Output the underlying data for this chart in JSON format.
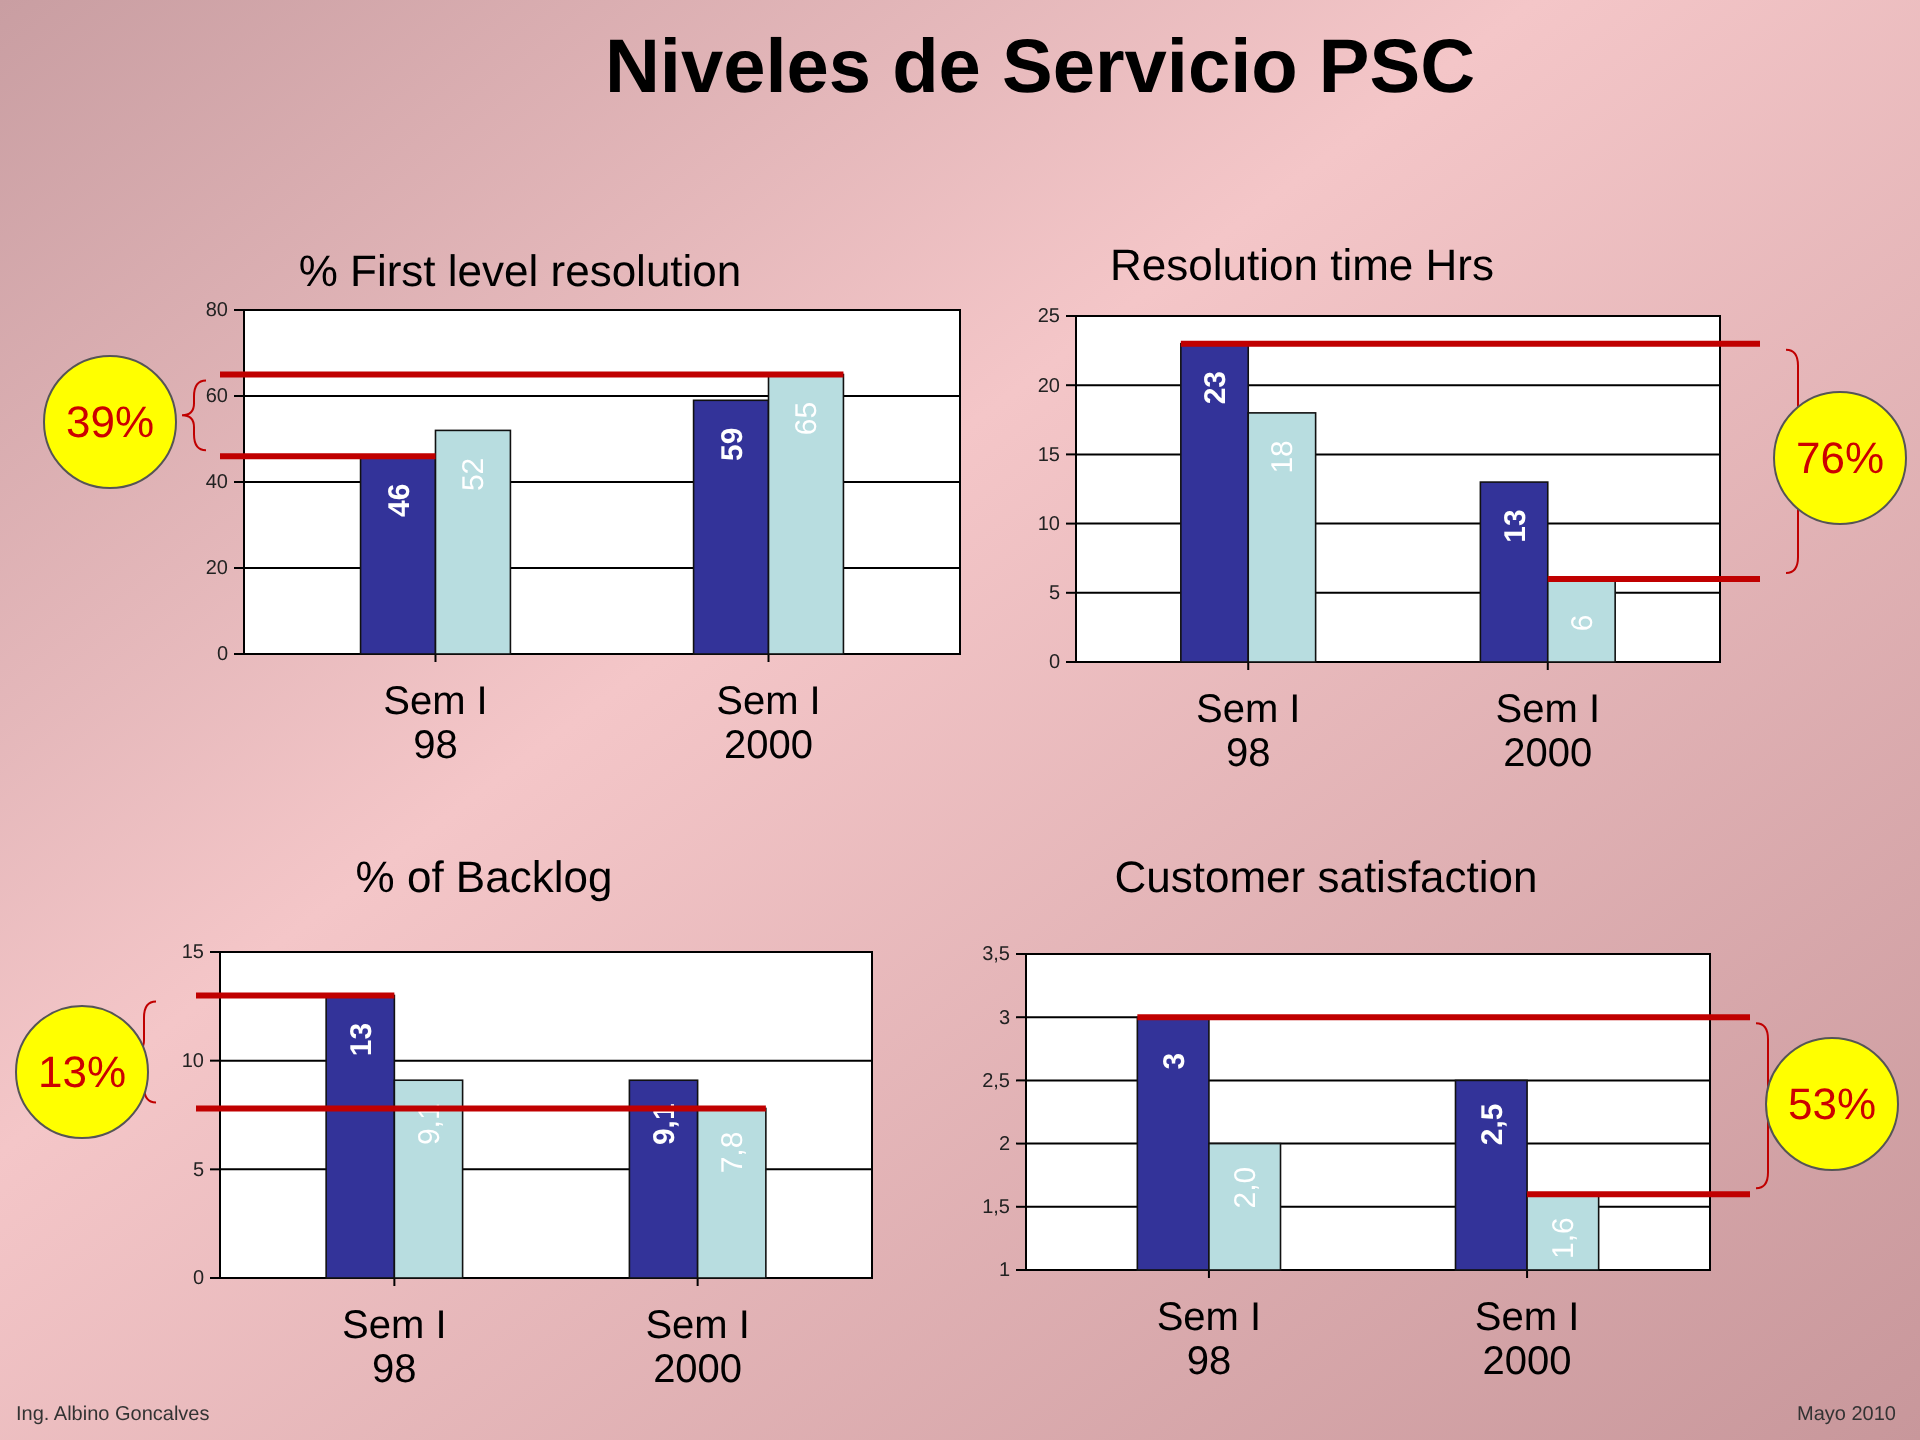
{
  "chart_data": [
    {
      "type": "other",
      "title": "Niveles de Servicio PSC",
      "annotations": [
        "Ing. Albino Goncalves",
        "Mayo 2010"
      ]
    },
    {
      "type": "bar",
      "title": "% First level resolution",
      "categories": [
        "Sem I 98",
        "Sem I 2000"
      ],
      "series": [
        {
          "color": "#333399",
          "values": [
            46,
            59
          ]
        },
        {
          "color": "#b8dde0",
          "values": [
            52,
            65
          ]
        }
      ],
      "ylim": [
        0,
        80
      ],
      "yticks": [
        0,
        20,
        40,
        60,
        80
      ],
      "grid": "y",
      "data_labels": true,
      "ref_lines": [
        {
          "axis": "y",
          "value": 46,
          "color": "#c00000"
        },
        {
          "axis": "y",
          "value": 65,
          "color": "#c00000"
        }
      ],
      "annotations": [
        "39%"
      ]
    },
    {
      "type": "bar",
      "title": "Resolution time Hrs",
      "categories": [
        "Sem I 98",
        "Sem I 2000"
      ],
      "series": [
        {
          "color": "#333399",
          "values": [
            23,
            13
          ]
        },
        {
          "color": "#b8dde0",
          "values": [
            18,
            6
          ]
        }
      ],
      "ylim": [
        0,
        25
      ],
      "yticks": [
        0,
        5,
        10,
        15,
        20,
        25
      ],
      "grid": "y",
      "data_labels": true,
      "ref_lines": [
        {
          "axis": "y",
          "value": 23,
          "color": "#c00000"
        },
        {
          "axis": "y",
          "value": 6,
          "color": "#c00000"
        }
      ],
      "annotations": [
        "76%"
      ]
    },
    {
      "type": "bar",
      "title": "% of Backlog",
      "categories": [
        "Sem I 98",
        "Sem I 2000"
      ],
      "series": [
        {
          "color": "#333399",
          "values": [
            13,
            9.1
          ],
          "value_labels": [
            "13",
            "9,1"
          ]
        },
        {
          "color": "#b8dde0",
          "values": [
            9.1,
            7.8
          ],
          "value_labels": [
            "9,1",
            "7,8"
          ]
        }
      ],
      "ylim": [
        0,
        15
      ],
      "yticks": [
        0,
        5,
        10,
        15
      ],
      "grid": "y",
      "ref_lines": [
        {
          "axis": "y",
          "value": 13,
          "color": "#c00000"
        },
        {
          "axis": "y",
          "value": 7.8,
          "color": "#c00000"
        }
      ],
      "annotations": [
        "13%"
      ]
    },
    {
      "type": "bar",
      "title": "Customer satisfaction",
      "categories": [
        "Sem I 98",
        "Sem I 2000"
      ],
      "series": [
        {
          "color": "#333399",
          "values": [
            3,
            2.5
          ],
          "value_labels": [
            "3",
            "2,5"
          ]
        },
        {
          "color": "#b8dde0",
          "values": [
            2,
            1.6
          ],
          "value_labels": [
            "2,0",
            "1,6"
          ]
        }
      ],
      "ylim": [
        1,
        3.5
      ],
      "yticks": [
        1,
        {
          "value": 1.5,
          "label": "1,5"
        },
        2,
        {
          "value": 2.5,
          "label": "2,5"
        },
        3,
        {
          "value": 3.5,
          "label": "3,5"
        }
      ],
      "grid": "y",
      "ref_lines": [
        {
          "axis": "y",
          "value": 3,
          "color": "#c00000"
        },
        {
          "axis": "y",
          "value": 1.6,
          "color": "#c00000"
        }
      ],
      "annotations": [
        "53%"
      ]
    }
  ]
}
